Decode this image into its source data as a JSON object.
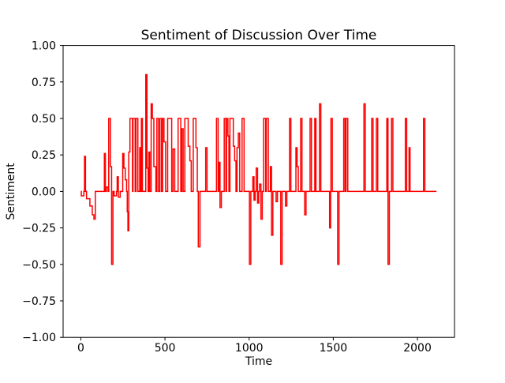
{
  "figure": {
    "title": "Sentiment of Discussion Over Time",
    "xlabel": "Time",
    "ylabel": "Sentiment"
  },
  "chart_data": {
    "type": "line",
    "title": "Sentiment of Discussion Over Time",
    "xlabel": "Time",
    "ylabel": "Sentiment",
    "legend": null,
    "grid": false,
    "line_color": "#ff0000",
    "line_width": 1.5,
    "background_color": "#ffffff",
    "spine_color": "#000000",
    "xlim": [
      -105,
      2220
    ],
    "ylim": [
      -1.0,
      1.0
    ],
    "x_ticks": [
      {
        "value": 0,
        "label": "0"
      },
      {
        "value": 500,
        "label": "500"
      },
      {
        "value": 1000,
        "label": "1000"
      },
      {
        "value": 1500,
        "label": "1500"
      },
      {
        "value": 2000,
        "label": "2000"
      }
    ],
    "y_ticks": [
      {
        "value": 1.0,
        "label": "1.00"
      },
      {
        "value": 0.75,
        "label": "0.75"
      },
      {
        "value": 0.5,
        "label": "0.50"
      },
      {
        "value": 0.25,
        "label": "0.25"
      },
      {
        "value": 0.0,
        "label": "0.00"
      },
      {
        "value": -0.25,
        "label": "−0.25"
      },
      {
        "value": -0.5,
        "label": "−0.50"
      },
      {
        "value": -0.75,
        "label": "−0.75"
      },
      {
        "value": -1.0,
        "label": "−1.00"
      }
    ],
    "points": [
      [
        0,
        0
      ],
      [
        3,
        0
      ],
      [
        3,
        -0.03
      ],
      [
        18,
        -0.03
      ],
      [
        18,
        0
      ],
      [
        22,
        0
      ],
      [
        22,
        0.24
      ],
      [
        28,
        0.24
      ],
      [
        28,
        0
      ],
      [
        34,
        0
      ],
      [
        34,
        -0.05
      ],
      [
        54,
        -0.05
      ],
      [
        54,
        -0.1
      ],
      [
        68,
        -0.1
      ],
      [
        68,
        -0.16
      ],
      [
        78,
        -0.16
      ],
      [
        78,
        -0.19
      ],
      [
        86,
        -0.19
      ],
      [
        86,
        0
      ],
      [
        140,
        0
      ],
      [
        140,
        0.26
      ],
      [
        146,
        0.26
      ],
      [
        146,
        0
      ],
      [
        152,
        0
      ],
      [
        152,
        0.03
      ],
      [
        162,
        0.03
      ],
      [
        162,
        0
      ],
      [
        166,
        0
      ],
      [
        166,
        0.5
      ],
      [
        176,
        0.5
      ],
      [
        176,
        0.17
      ],
      [
        183,
        0.17
      ],
      [
        183,
        -0.5
      ],
      [
        191,
        -0.5
      ],
      [
        191,
        0
      ],
      [
        198,
        0
      ],
      [
        198,
        -0.03
      ],
      [
        212,
        -0.03
      ],
      [
        212,
        0
      ],
      [
        216,
        0
      ],
      [
        216,
        0.1
      ],
      [
        223,
        0.1
      ],
      [
        223,
        -0.04
      ],
      [
        234,
        -0.04
      ],
      [
        234,
        0
      ],
      [
        249,
        0
      ],
      [
        249,
        0.26
      ],
      [
        256,
        0.26
      ],
      [
        256,
        0.16
      ],
      [
        264,
        0.16
      ],
      [
        264,
        0.08
      ],
      [
        272,
        0.08
      ],
      [
        272,
        0
      ],
      [
        276,
        0
      ],
      [
        276,
        -0.14
      ],
      [
        280,
        -0.14
      ],
      [
        280,
        -0.27
      ],
      [
        285,
        -0.27
      ],
      [
        285,
        0.27
      ],
      [
        292,
        0.27
      ],
      [
        292,
        0.5
      ],
      [
        307,
        0.5
      ],
      [
        307,
        0
      ],
      [
        310,
        0
      ],
      [
        310,
        0.5
      ],
      [
        323,
        0.5
      ],
      [
        323,
        0
      ],
      [
        328,
        0
      ],
      [
        328,
        0.5
      ],
      [
        339,
        0.5
      ],
      [
        339,
        0
      ],
      [
        350,
        0
      ],
      [
        350,
        0.3
      ],
      [
        356,
        0.3
      ],
      [
        356,
        0
      ],
      [
        360,
        0
      ],
      [
        360,
        0.5
      ],
      [
        366,
        0.5
      ],
      [
        366,
        0
      ],
      [
        370,
        0
      ],
      [
        386,
        0
      ],
      [
        386,
        0.8
      ],
      [
        393,
        0.8
      ],
      [
        393,
        0.16
      ],
      [
        400,
        0.16
      ],
      [
        400,
        0
      ],
      [
        404,
        0
      ],
      [
        404,
        0.27
      ],
      [
        410,
        0.27
      ],
      [
        410,
        0
      ],
      [
        418,
        0
      ],
      [
        418,
        0.6
      ],
      [
        425,
        0.6
      ],
      [
        425,
        0.5
      ],
      [
        434,
        0.5
      ],
      [
        434,
        0.17
      ],
      [
        446,
        0.17
      ],
      [
        446,
        0
      ],
      [
        452,
        0
      ],
      [
        452,
        0.5
      ],
      [
        462,
        0.5
      ],
      [
        462,
        0
      ],
      [
        470,
        0
      ],
      [
        470,
        0.5
      ],
      [
        480,
        0.5
      ],
      [
        480,
        0
      ],
      [
        486,
        0
      ],
      [
        486,
        0.5
      ],
      [
        494,
        0.5
      ],
      [
        494,
        0.34
      ],
      [
        504,
        0.34
      ],
      [
        504,
        0
      ],
      [
        516,
        0
      ],
      [
        516,
        0.5
      ],
      [
        540,
        0.5
      ],
      [
        540,
        0
      ],
      [
        548,
        0
      ],
      [
        548,
        0.29
      ],
      [
        558,
        0.29
      ],
      [
        558,
        0
      ],
      [
        578,
        0
      ],
      [
        578,
        0.5
      ],
      [
        594,
        0.5
      ],
      [
        594,
        0
      ],
      [
        600,
        0
      ],
      [
        600,
        0.43
      ],
      [
        608,
        0.43
      ],
      [
        608,
        0
      ],
      [
        618,
        0
      ],
      [
        618,
        0.5
      ],
      [
        638,
        0.5
      ],
      [
        638,
        0.31
      ],
      [
        648,
        0.31
      ],
      [
        648,
        0.21
      ],
      [
        656,
        0.21
      ],
      [
        656,
        0
      ],
      [
        668,
        0
      ],
      [
        668,
        0.5
      ],
      [
        684,
        0.5
      ],
      [
        684,
        0.3
      ],
      [
        692,
        0.3
      ],
      [
        692,
        0
      ],
      [
        698,
        0
      ],
      [
        698,
        -0.38
      ],
      [
        708,
        -0.38
      ],
      [
        708,
        0
      ],
      [
        742,
        0
      ],
      [
        742,
        0.3
      ],
      [
        750,
        0.3
      ],
      [
        750,
        0
      ],
      [
        806,
        0
      ],
      [
        806,
        0.5
      ],
      [
        816,
        0.5
      ],
      [
        816,
        0
      ],
      [
        822,
        0
      ],
      [
        822,
        0.2
      ],
      [
        827,
        0.2
      ],
      [
        827,
        -0.11
      ],
      [
        835,
        -0.11
      ],
      [
        835,
        0
      ],
      [
        852,
        0
      ],
      [
        852,
        0.5
      ],
      [
        862,
        0.5
      ],
      [
        862,
        0
      ],
      [
        866,
        0
      ],
      [
        866,
        0.5
      ],
      [
        874,
        0.5
      ],
      [
        874,
        0.38
      ],
      [
        880,
        0.38
      ],
      [
        880,
        0
      ],
      [
        886,
        0
      ],
      [
        886,
        0.5
      ],
      [
        906,
        0.5
      ],
      [
        906,
        0.31
      ],
      [
        914,
        0.31
      ],
      [
        914,
        0.21
      ],
      [
        922,
        0.21
      ],
      [
        922,
        0
      ],
      [
        928,
        0
      ],
      [
        928,
        0.3
      ],
      [
        936,
        0.3
      ],
      [
        936,
        0.4
      ],
      [
        944,
        0.4
      ],
      [
        944,
        0
      ],
      [
        958,
        0
      ],
      [
        958,
        0.5
      ],
      [
        970,
        0.5
      ],
      [
        970,
        0
      ],
      [
        1002,
        0
      ],
      [
        1002,
        -0.5
      ],
      [
        1010,
        -0.5
      ],
      [
        1010,
        0
      ],
      [
        1022,
        0
      ],
      [
        1022,
        0.1
      ],
      [
        1029,
        0.1
      ],
      [
        1029,
        -0.06
      ],
      [
        1036,
        -0.06
      ],
      [
        1036,
        0
      ],
      [
        1042,
        0
      ],
      [
        1042,
        0.16
      ],
      [
        1050,
        0.16
      ],
      [
        1050,
        -0.08
      ],
      [
        1057,
        -0.08
      ],
      [
        1057,
        0
      ],
      [
        1062,
        0
      ],
      [
        1062,
        0.05
      ],
      [
        1070,
        0.05
      ],
      [
        1070,
        -0.19
      ],
      [
        1078,
        -0.19
      ],
      [
        1078,
        0
      ],
      [
        1086,
        0
      ],
      [
        1086,
        0.5
      ],
      [
        1098,
        0.5
      ],
      [
        1098,
        0
      ],
      [
        1102,
        0
      ],
      [
        1102,
        0.5
      ],
      [
        1114,
        0.5
      ],
      [
        1114,
        0
      ],
      [
        1126,
        0
      ],
      [
        1126,
        0.17
      ],
      [
        1133,
        0.17
      ],
      [
        1133,
        -0.3
      ],
      [
        1141,
        -0.3
      ],
      [
        1141,
        0
      ],
      [
        1160,
        0
      ],
      [
        1160,
        -0.07
      ],
      [
        1168,
        -0.07
      ],
      [
        1168,
        0
      ],
      [
        1188,
        0
      ],
      [
        1188,
        -0.5
      ],
      [
        1196,
        -0.5
      ],
      [
        1196,
        0
      ],
      [
        1216,
        0
      ],
      [
        1216,
        -0.1
      ],
      [
        1224,
        -0.1
      ],
      [
        1224,
        0
      ],
      [
        1240,
        0
      ],
      [
        1240,
        0.5
      ],
      [
        1248,
        0.5
      ],
      [
        1248,
        0
      ],
      [
        1278,
        0
      ],
      [
        1278,
        0.3
      ],
      [
        1285,
        0.3
      ],
      [
        1285,
        0.17
      ],
      [
        1292,
        0.17
      ],
      [
        1292,
        0
      ],
      [
        1306,
        0
      ],
      [
        1306,
        0.5
      ],
      [
        1314,
        0.5
      ],
      [
        1314,
        0
      ],
      [
        1330,
        0
      ],
      [
        1330,
        -0.16
      ],
      [
        1338,
        -0.16
      ],
      [
        1338,
        0
      ],
      [
        1362,
        0
      ],
      [
        1362,
        0.5
      ],
      [
        1370,
        0.5
      ],
      [
        1370,
        0
      ],
      [
        1390,
        0
      ],
      [
        1390,
        0.5
      ],
      [
        1397,
        0.5
      ],
      [
        1397,
        0
      ],
      [
        1418,
        0
      ],
      [
        1418,
        0.6
      ],
      [
        1426,
        0.6
      ],
      [
        1426,
        0
      ],
      [
        1478,
        0
      ],
      [
        1478,
        -0.25
      ],
      [
        1484,
        -0.25
      ],
      [
        1484,
        0
      ],
      [
        1486,
        0
      ],
      [
        1486,
        0.5
      ],
      [
        1494,
        0.5
      ],
      [
        1494,
        0
      ],
      [
        1526,
        0
      ],
      [
        1526,
        -0.5
      ],
      [
        1534,
        -0.5
      ],
      [
        1534,
        0
      ],
      [
        1562,
        0
      ],
      [
        1562,
        0.5
      ],
      [
        1570,
        0.5
      ],
      [
        1570,
        0
      ],
      [
        1576,
        0
      ],
      [
        1576,
        0.5
      ],
      [
        1586,
        0.5
      ],
      [
        1586,
        0
      ],
      [
        1682,
        0
      ],
      [
        1682,
        0.6
      ],
      [
        1690,
        0.6
      ],
      [
        1690,
        0
      ],
      [
        1728,
        0
      ],
      [
        1728,
        0.5
      ],
      [
        1736,
        0.5
      ],
      [
        1736,
        0
      ],
      [
        1756,
        0
      ],
      [
        1756,
        0.5
      ],
      [
        1764,
        0.5
      ],
      [
        1764,
        0
      ],
      [
        1818,
        0
      ],
      [
        1818,
        0.5
      ],
      [
        1825,
        0.5
      ],
      [
        1825,
        -0.5
      ],
      [
        1833,
        -0.5
      ],
      [
        1833,
        0
      ],
      [
        1846,
        0
      ],
      [
        1846,
        0.5
      ],
      [
        1854,
        0.5
      ],
      [
        1854,
        0
      ],
      [
        1928,
        0
      ],
      [
        1928,
        0.5
      ],
      [
        1936,
        0.5
      ],
      [
        1936,
        0
      ],
      [
        1950,
        0
      ],
      [
        1950,
        0.3
      ],
      [
        1956,
        0.3
      ],
      [
        1956,
        0
      ],
      [
        2036,
        0
      ],
      [
        2036,
        0.5
      ],
      [
        2044,
        0.5
      ],
      [
        2044,
        0
      ],
      [
        2113,
        0
      ]
    ]
  }
}
